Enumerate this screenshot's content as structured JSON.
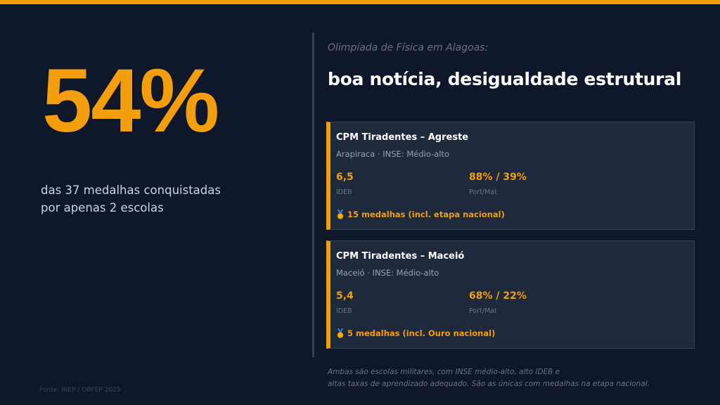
{
  "slide": {
    "big_stat": "54%",
    "stat_desc_line1": "das 37 medalhas conquistadas",
    "stat_desc_line2": "por apenas 2 escolas",
    "source": "Fonte: INEP / OBFEP 2025",
    "kicker": "Olimpíada de Física em Alagoas:",
    "headline": "boa notícia, desigualdade estrutural",
    "footnote_line1": "Ambas são escolas militares, com INSE médio-alto, alto IDEB e",
    "footnote_line2": "altas taxas de aprendizado adequado. São as únicas com medalhas na etapa nacional."
  },
  "cards": [
    {
      "title": "CPM Tiradentes – Agreste",
      "subtitle": "Arapiraca · INSE: Médio-alto",
      "ideb_value": "6,5",
      "ideb_label": "IDEB",
      "portmat_value": "88% / 39%",
      "portmat_label": "Port/Mat",
      "medals": "15 medalhas (incl. etapa nacional)"
    },
    {
      "title": "CPM Tiradentes – Maceió",
      "subtitle": "Maceió · INSE: Médio-alto",
      "ideb_value": "5,4",
      "ideb_label": "IDEB",
      "portmat_value": "68% / 22%",
      "portmat_label": "Port/Mat",
      "medals": "5 medalhas (incl. Ouro nacional)"
    }
  ],
  "colors": {
    "accent": "#f59e0b",
    "background": "#0f172a",
    "card_bg": "#1e293b"
  },
  "icons": {
    "medal": "medal-icon"
  }
}
